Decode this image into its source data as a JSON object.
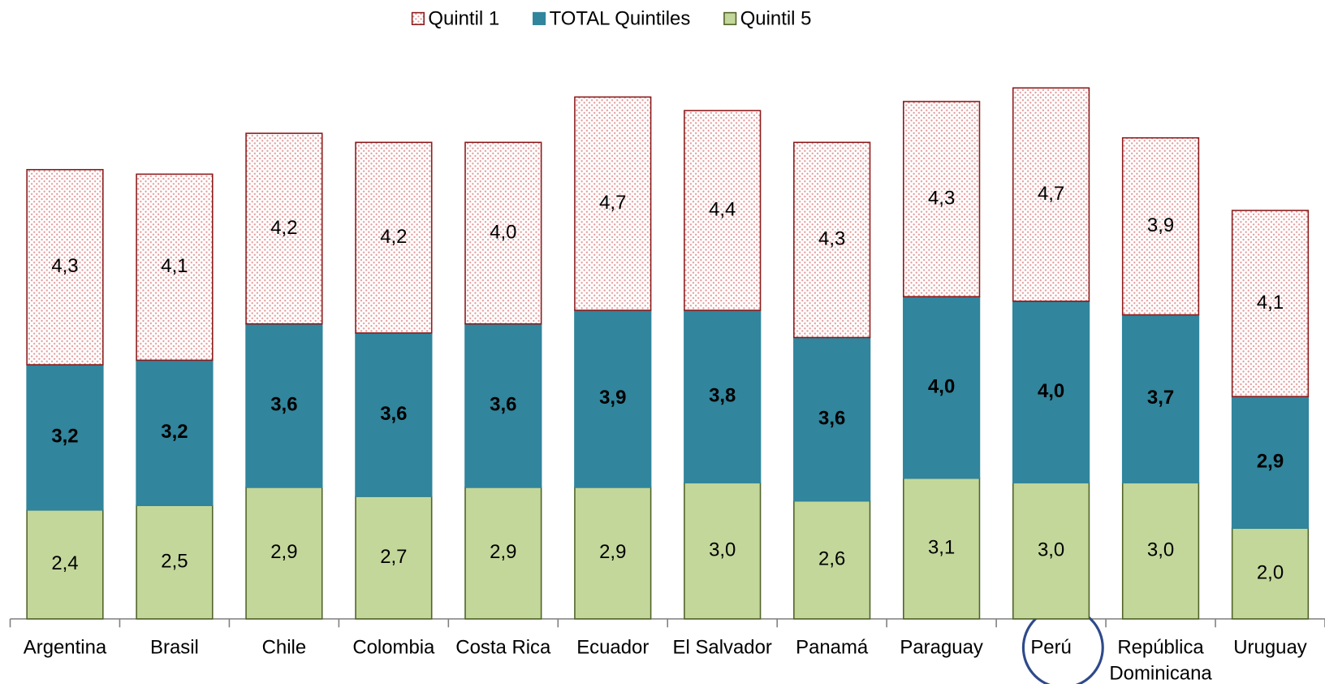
{
  "chart_data": {
    "type": "stacked_bar",
    "categories": [
      "Argentina",
      "Brasil",
      "Chile",
      "Colombia",
      "Costa Rica",
      "Ecuador",
      "El Salvador",
      "Panamá",
      "Paraguay",
      "Perú",
      "República Dominicana",
      "Uruguay"
    ],
    "series": [
      {
        "name": "Quintil 1",
        "color": "#c0504d",
        "values": [
          4.3,
          4.1,
          4.2,
          4.2,
          4.0,
          4.7,
          4.4,
          4.3,
          4.3,
          4.7,
          3.9,
          4.1
        ],
        "value_labels": [
          "4,3",
          "4,1",
          "4,2",
          "4,2",
          "4,0",
          "4,7",
          "4,4",
          "4,3",
          "4,3",
          "4,7",
          "3,9",
          "4,1"
        ]
      },
      {
        "name": "TOTAL Quintiles",
        "color": "#31859c",
        "values": [
          3.2,
          3.2,
          3.6,
          3.6,
          3.6,
          3.9,
          3.8,
          3.6,
          4.0,
          4.0,
          3.7,
          2.9
        ],
        "value_labels": [
          "3,2",
          "3,2",
          "3,6",
          "3,6",
          "3,6",
          "3,9",
          "3,8",
          "3,6",
          "4,0",
          "4,0",
          "3,7",
          "2,9"
        ]
      },
      {
        "name": "Quintil 5",
        "color": "#c4d79b",
        "values": [
          2.4,
          2.5,
          2.9,
          2.7,
          2.9,
          2.9,
          3.0,
          2.6,
          3.1,
          3.0,
          3.0,
          2.0
        ],
        "value_labels": [
          "2,4",
          "2,5",
          "2,9",
          "2,7",
          "2,9",
          "2,9",
          "3,0",
          "2,6",
          "3,1",
          "3,0",
          "3,0",
          "2,0"
        ]
      }
    ],
    "legend": "top"
  }
}
